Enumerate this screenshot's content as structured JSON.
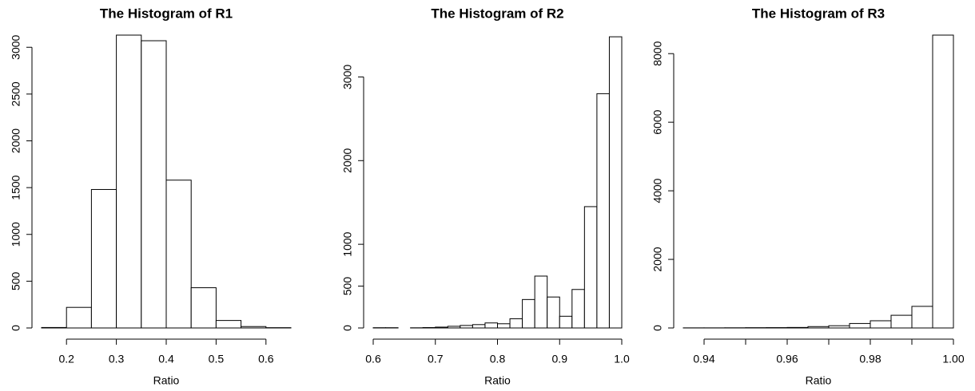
{
  "chart_data": [
    {
      "type": "histogram",
      "title": "The Histogram of R1",
      "xlabel": "Ratio",
      "bins": [
        0.15,
        0.2,
        0.25,
        0.3,
        0.35,
        0.4,
        0.45,
        0.5,
        0.55,
        0.6,
        0.65
      ],
      "counts": [
        5,
        220,
        1480,
        3130,
        3070,
        1580,
        430,
        80,
        15,
        3
      ],
      "xlim": [
        0.15,
        0.65
      ],
      "ylim": [
        0,
        3130
      ],
      "xticks": [
        0.2,
        0.3,
        0.4,
        0.5,
        0.6
      ],
      "yticks": [
        0,
        500,
        1000,
        1500,
        2000,
        2500,
        3000
      ],
      "color": "#ffffff"
    },
    {
      "type": "histogram",
      "title": "The Histogram of R2",
      "xlabel": "Ratio",
      "bins": [
        0.6,
        0.62,
        0.64,
        0.66,
        0.68,
        0.7,
        0.72,
        0.74,
        0.76,
        0.78,
        0.8,
        0.82,
        0.84,
        0.86,
        0.88,
        0.9,
        0.92,
        0.94,
        0.96,
        0.98,
        1.0
      ],
      "counts": [
        3,
        3,
        0,
        2,
        5,
        10,
        20,
        30,
        40,
        60,
        50,
        110,
        340,
        620,
        370,
        140,
        460,
        1450,
        2800,
        3480
      ],
      "xlim": [
        0.6,
        1.0
      ],
      "ylim": [
        0,
        3500
      ],
      "xticks": [
        0.6,
        0.7,
        0.8,
        0.9,
        {
          "value": 1,
          "label": "1.0"
        }
      ],
      "yticks": [
        0,
        500,
        1000,
        2000,
        3000
      ],
      "color": "#ffffff"
    },
    {
      "type": "histogram",
      "title": "The Histogram of R3",
      "xlabel": "Ratio",
      "bins": [
        0.935,
        0.94,
        0.945,
        0.95,
        0.955,
        0.96,
        0.965,
        0.97,
        0.975,
        0.98,
        0.985,
        0.99,
        0.995,
        1.0
      ],
      "counts": [
        3,
        3,
        5,
        8,
        10,
        15,
        40,
        65,
        130,
        210,
        370,
        630,
        8540
      ],
      "xlim": [
        0.935,
        1.0
      ],
      "ylim": [
        0,
        8540
      ],
      "xticks": [
        0.94,
        0.96,
        0.98,
        {
          "value": 1,
          "label": "1.00"
        }
      ],
      "xminor": [
        0.95,
        0.97,
        0.99
      ],
      "yticks": [
        0,
        2000,
        4000,
        6000,
        8000
      ],
      "color": "#ffffff"
    }
  ]
}
